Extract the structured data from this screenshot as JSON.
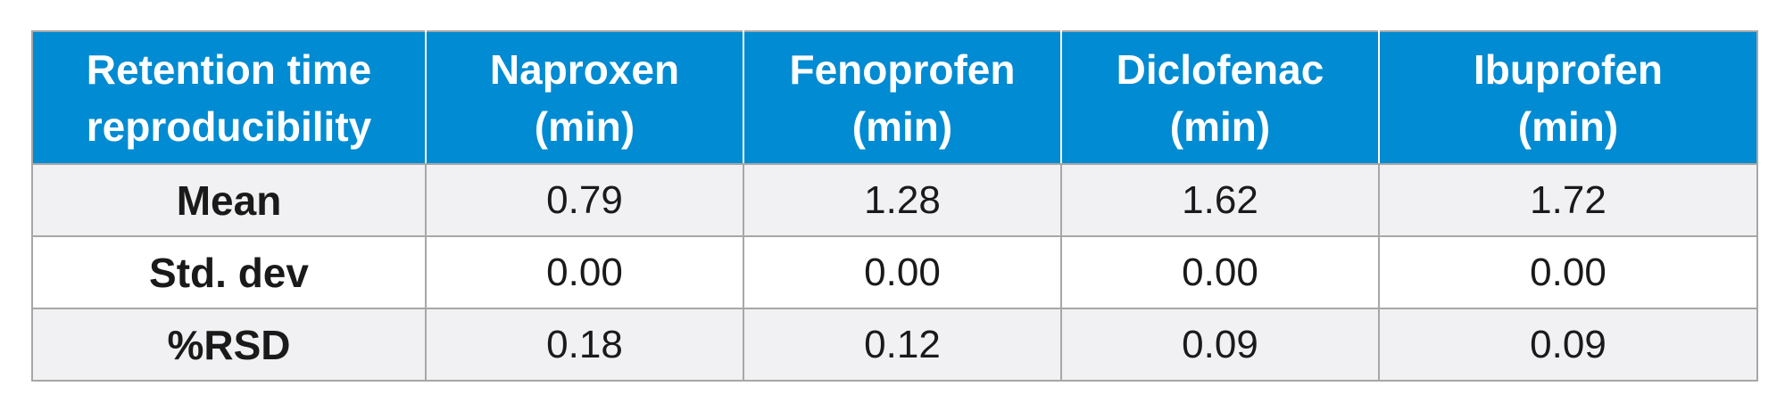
{
  "table": {
    "header": [
      {
        "line1": "Retention time",
        "line2": "reproducibility"
      },
      {
        "line1": "Naproxen",
        "line2": "(min)"
      },
      {
        "line1": "Fenoprofen",
        "line2": "(min)"
      },
      {
        "line1": "Diclofenac",
        "line2": "(min)"
      },
      {
        "line1": "Ibuprofen",
        "line2": "(min)"
      }
    ],
    "rows": [
      {
        "label": "Mean",
        "values": [
          "0.79",
          "1.28",
          "1.62",
          "1.72"
        ]
      },
      {
        "label": "Std. dev",
        "values": [
          "0.00",
          "0.00",
          "0.00",
          "0.00"
        ]
      },
      {
        "label": "%RSD",
        "values": [
          "0.18",
          "0.12",
          "0.09",
          "0.09"
        ]
      }
    ]
  },
  "colors": {
    "header_background": "#008bd2",
    "header_text": "#ffffff",
    "shaded_row": "#f1f1f3",
    "border": "#a7a7a7"
  }
}
